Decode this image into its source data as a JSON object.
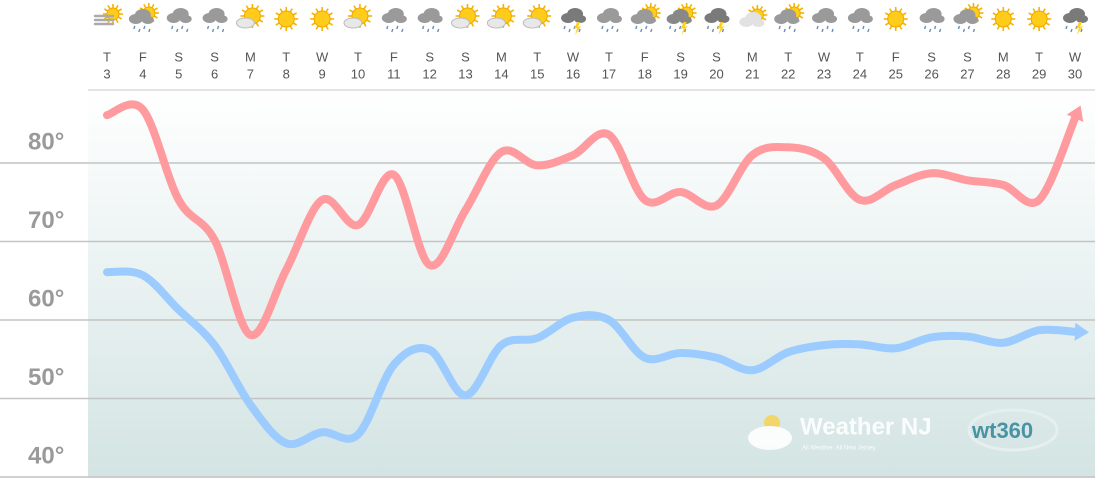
{
  "chart_data": {
    "type": "line",
    "categories": [
      "T",
      "F",
      "S",
      "S",
      "M",
      "T",
      "W",
      "T",
      "F",
      "S",
      "S",
      "M",
      "T",
      "W",
      "T",
      "F",
      "S",
      "S",
      "M",
      "T",
      "W",
      "T",
      "F",
      "S",
      "S",
      "M",
      "T",
      "W"
    ],
    "dates": [
      "3",
      "4",
      "5",
      "6",
      "7",
      "8",
      "9",
      "10",
      "11",
      "12",
      "13",
      "14",
      "15",
      "16",
      "17",
      "18",
      "19",
      "20",
      "21",
      "22",
      "23",
      "24",
      "25",
      "26",
      "27",
      "28",
      "29",
      "30"
    ],
    "conditions": [
      "fog",
      "sun-rain",
      "rain",
      "rain",
      "partly",
      "sun",
      "sun",
      "partly",
      "rain",
      "rain",
      "partly",
      "partly",
      "partly",
      "storm",
      "rain",
      "sun-rain",
      "sun-storm",
      "storm",
      "cloudy",
      "sun-rain",
      "rain",
      "rain",
      "sun",
      "rain",
      "sun-rain",
      "sun",
      "sun",
      "storm"
    ],
    "series": [
      {
        "name": "High",
        "color": "#ff9a9e",
        "values": [
          86.1,
          86.8,
          75.3,
          70.2,
          58.1,
          66.4,
          75.3,
          72.1,
          78.5,
          67.0,
          74.0,
          81.4,
          79.7,
          81.0,
          83.6,
          75.3,
          76.3,
          74.6,
          81.0,
          82.0,
          80.6,
          75.3,
          77.2,
          78.7,
          77.8,
          77.2,
          75.3,
          85.7
        ]
      },
      {
        "name": "Low",
        "color": "#9ccbff",
        "values": [
          66.1,
          65.7,
          61.3,
          56.8,
          49.2,
          44.3,
          45.7,
          45.4,
          54.3,
          56.2,
          50.4,
          56.8,
          57.7,
          60.3,
          60.0,
          55.2,
          55.8,
          55.2,
          53.6,
          55.9,
          56.8,
          56.9,
          56.4,
          57.8,
          57.9,
          57.1,
          58.7,
          58.5
        ]
      }
    ],
    "ylim": [
      40,
      89.3
    ],
    "yticks": [
      {
        "value": 40,
        "label": "40°"
      },
      {
        "value": 50,
        "label": "50°"
      },
      {
        "value": 60,
        "label": "60°"
      },
      {
        "value": 70,
        "label": "70°"
      },
      {
        "value": 80,
        "label": "80°"
      }
    ],
    "grid": true,
    "annotations": [
      "Weather NJ",
      "All Weather. All New Jersey.",
      "wt360"
    ]
  }
}
